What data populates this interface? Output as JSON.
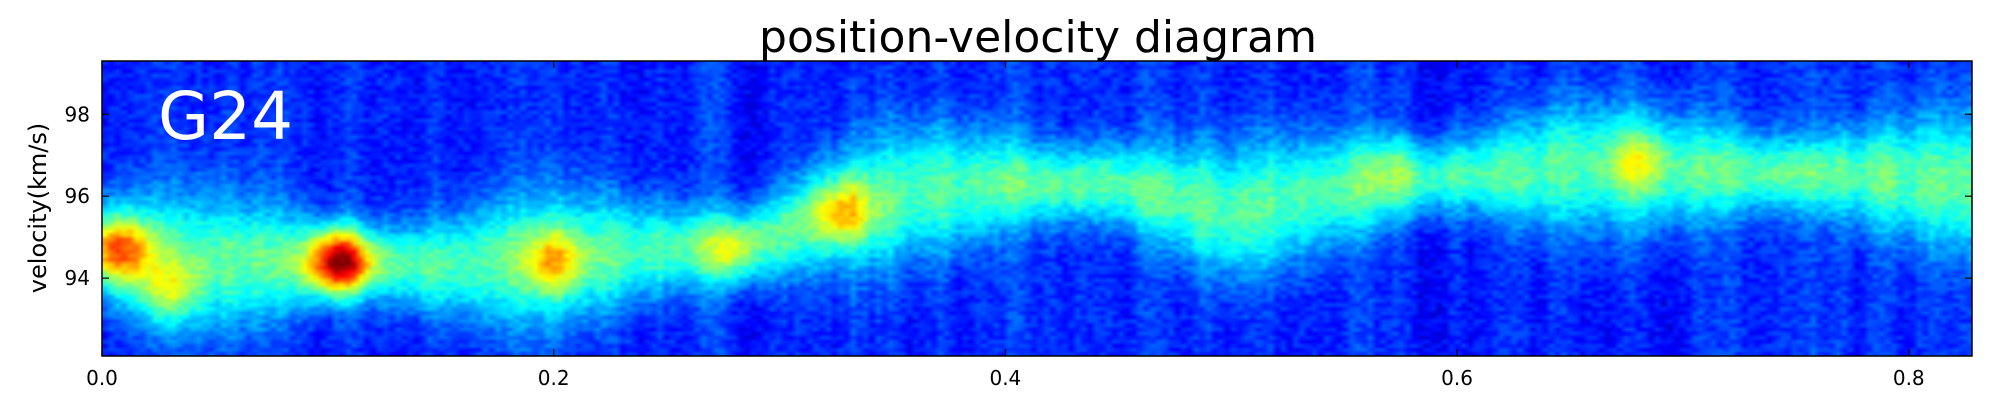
{
  "chart_data": {
    "type": "heatmap",
    "title": "position-velocity diagram",
    "xlabel": "",
    "ylabel": "velocity(km/s)",
    "annotation": "G24",
    "xlim": [
      0,
      0.828
    ],
    "ylim": [
      92.1,
      99.3
    ],
    "x_ticks": [
      "0.0",
      "0.2",
      "0.4",
      "0.6",
      "0.8"
    ],
    "y_ticks": [
      "94",
      "96",
      "98"
    ],
    "x_tick_values": [
      0.0,
      0.2,
      0.4,
      0.6,
      0.8
    ],
    "y_tick_values": [
      94,
      96,
      98
    ],
    "colormap": "jet",
    "grid": false,
    "ridge": {
      "x": [
        0.0,
        0.02,
        0.05,
        0.1,
        0.15,
        0.2,
        0.25,
        0.28,
        0.3,
        0.33,
        0.36,
        0.4,
        0.45,
        0.5,
        0.55,
        0.6,
        0.65,
        0.68,
        0.72,
        0.78,
        0.828
      ],
      "velocity": [
        94.7,
        94.5,
        94.4,
        94.4,
        94.3,
        94.5,
        94.7,
        94.8,
        95.1,
        95.7,
        96.1,
        96.3,
        96.3,
        95.6,
        96.2,
        96.5,
        96.7,
        96.7,
        96.6,
        96.5,
        96.3
      ]
    },
    "peaks": [
      {
        "x": 0.105,
        "velocity": 94.4,
        "intensity": 1.0
      },
      {
        "x": 0.008,
        "velocity": 94.7,
        "intensity": 0.82
      },
      {
        "x": 0.2,
        "velocity": 94.4,
        "intensity": 0.7
      },
      {
        "x": 0.328,
        "velocity": 95.6,
        "intensity": 0.7
      },
      {
        "x": 0.68,
        "velocity": 96.8,
        "intensity": 0.62
      },
      {
        "x": 0.57,
        "velocity": 96.9,
        "intensity": 0.55
      },
      {
        "x": 0.03,
        "velocity": 93.7,
        "intensity": 0.65
      },
      {
        "x": 0.28,
        "velocity": 94.6,
        "intensity": 0.6
      }
    ]
  }
}
